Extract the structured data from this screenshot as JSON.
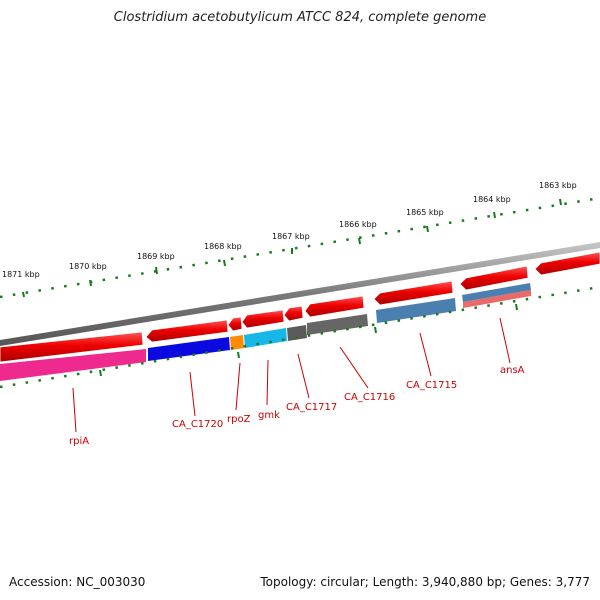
{
  "title": "Clostridium acetobutylicum ATCC 824, complete genome",
  "accession": "Accession: NC_003030",
  "topology": "Topology: circular; Length: 3,940,880 bp; Genes: 3,777",
  "ruler": [
    "1871 kbp",
    "1870 kbp",
    "1869 kbp",
    "1868 kbp",
    "1867 kbp",
    "1866 kbp",
    "1865 kbp",
    "1864 kbp",
    "1863 kbp"
  ],
  "gene_labels": [
    "rpiA",
    "CA_C1720",
    "rpoZ",
    "gmk",
    "CA_C1717",
    "CA_C1716",
    "CA_C1715",
    "ansA"
  ],
  "colors": {
    "backbone": "#888888",
    "arrow_red": "#ee0000",
    "tick_green": "#1a7a1a",
    "label_red": "#cc0000",
    "rpiA": "#ee2a8e",
    "CA_C1720": "#0a0ae0",
    "rpoZ": "#ff8c00",
    "gmk": "#17b8e8",
    "CA_C1717": "#5a5a5a",
    "CA_C1716": "#666666",
    "CA_C1715": "#4a7fb0",
    "ansA": "#e86a6a"
  }
}
